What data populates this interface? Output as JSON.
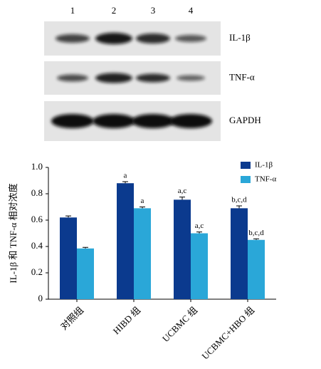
{
  "blot": {
    "lanes": [
      "1",
      "2",
      "3",
      "4"
    ],
    "rows": [
      "IL-1β",
      "TNF-α",
      "GAPDH"
    ]
  },
  "chart_data": {
    "type": "bar",
    "y_label": "IL-1β 和 TNF-α 相对浓度",
    "categories": [
      "对照组",
      "HIBD 组",
      "UCBMC 组",
      "UCBMC+HBO 组"
    ],
    "series": [
      {
        "name": "IL-1β",
        "color": "#0b3a8e",
        "values": [
          0.62,
          0.88,
          0.755,
          0.69
        ],
        "errors": [
          0.012,
          0.012,
          0.02,
          0.018
        ],
        "sig_labels": [
          null,
          "a",
          "a,c",
          "b,c,d"
        ]
      },
      {
        "name": "TNF-α",
        "color": "#2aa7d8",
        "values": [
          0.385,
          0.69,
          0.5,
          0.45
        ],
        "errors": [
          0.008,
          0.01,
          0.01,
          0.008
        ],
        "sig_labels": [
          null,
          "a",
          "a,c",
          "b,c,d"
        ]
      }
    ],
    "ylim": [
      0,
      1
    ],
    "yticks": [
      0,
      0.2,
      0.4,
      0.6,
      0.8,
      {
        "value": 1,
        "label": "1.0"
      }
    ],
    "legend": "upper-right"
  }
}
